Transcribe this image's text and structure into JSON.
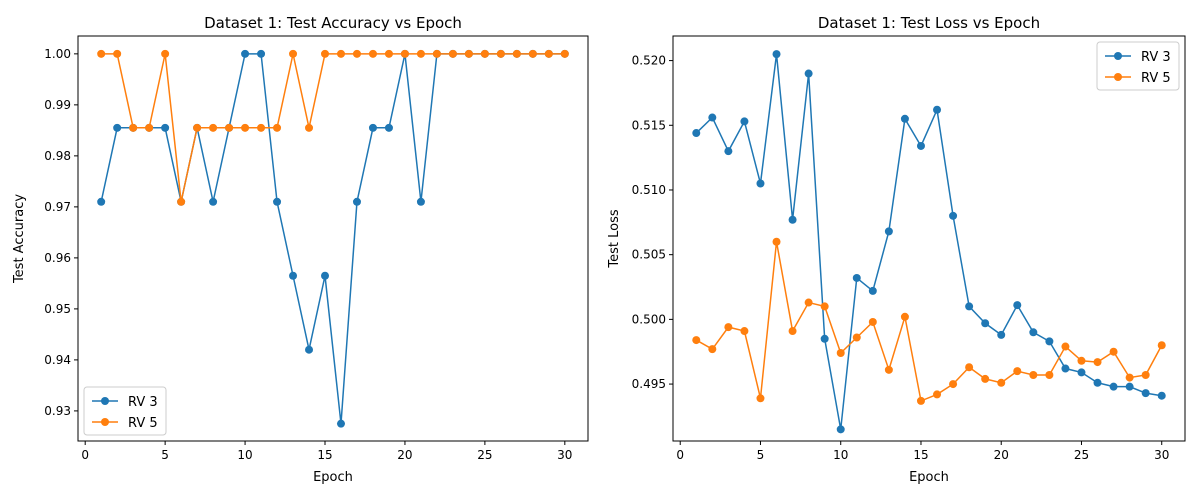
{
  "chart_data": [
    {
      "type": "line",
      "title": "Dataset 1: Test Accuracy vs Epoch",
      "xlabel": "Epoch",
      "ylabel": "Test Accuracy",
      "xlim": [
        -0.45,
        31.45
      ],
      "ylim": [
        0.9241,
        1.0035
      ],
      "xticks": [
        0,
        5,
        10,
        15,
        20,
        25,
        30
      ],
      "yticks": [
        0.93,
        0.94,
        0.95,
        0.96,
        0.97,
        0.98,
        0.99,
        1.0
      ],
      "ytick_labels": [
        "0.93",
        "0.94",
        "0.95",
        "0.96",
        "0.97",
        "0.98",
        "0.99",
        "1.00"
      ],
      "legend_position": "lower-left",
      "x": [
        1,
        2,
        3,
        4,
        5,
        6,
        7,
        8,
        9,
        10,
        11,
        12,
        13,
        14,
        15,
        16,
        17,
        18,
        19,
        20,
        21,
        22,
        23,
        24,
        25,
        26,
        27,
        28,
        29,
        30
      ],
      "series": [
        {
          "name": "RV 3",
          "color": "#1f77b4",
          "values": [
            0.971,
            0.9855,
            0.9855,
            0.9855,
            0.9855,
            0.971,
            0.9855,
            0.971,
            0.9855,
            1.0,
            1.0,
            0.971,
            0.9565,
            0.942,
            0.9565,
            0.9275,
            0.971,
            0.9855,
            0.9855,
            1.0,
            0.971,
            1.0,
            1.0,
            1.0,
            1.0,
            1.0,
            1.0,
            1.0,
            1.0,
            1.0
          ]
        },
        {
          "name": "RV 5",
          "color": "#ff7f0e",
          "values": [
            1.0,
            1.0,
            0.9855,
            0.9855,
            1.0,
            0.971,
            0.9855,
            0.9855,
            0.9855,
            0.9855,
            0.9855,
            0.9855,
            1.0,
            0.9855,
            1.0,
            1.0,
            1.0,
            1.0,
            1.0,
            1.0,
            1.0,
            1.0,
            1.0,
            1.0,
            1.0,
            1.0,
            1.0,
            1.0,
            1.0,
            1.0
          ]
        }
      ]
    },
    {
      "type": "line",
      "title": "Dataset 1: Test Loss vs Epoch",
      "xlabel": "Epoch",
      "ylabel": "Test Loss",
      "xlim": [
        -0.45,
        31.45
      ],
      "ylim": [
        0.4906,
        0.5219
      ],
      "xticks": [
        0,
        5,
        10,
        15,
        20,
        25,
        30
      ],
      "yticks": [
        0.495,
        0.5,
        0.505,
        0.51,
        0.515,
        0.52
      ],
      "ytick_labels": [
        "0.495",
        "0.500",
        "0.505",
        "0.510",
        "0.515",
        "0.520"
      ],
      "legend_position": "upper-right",
      "x": [
        1,
        2,
        3,
        4,
        5,
        6,
        7,
        8,
        9,
        10,
        11,
        12,
        13,
        14,
        15,
        16,
        17,
        18,
        19,
        20,
        21,
        22,
        23,
        24,
        25,
        26,
        27,
        28,
        29,
        30
      ],
      "series": [
        {
          "name": "RV 3",
          "color": "#1f77b4",
          "values": [
            0.5144,
            0.5156,
            0.513,
            0.5153,
            0.5105,
            0.5205,
            0.5077,
            0.519,
            0.4985,
            0.4915,
            0.5032,
            0.5022,
            0.5068,
            0.5155,
            0.5134,
            0.5162,
            0.508,
            0.501,
            0.4997,
            0.4988,
            0.5011,
            0.499,
            0.4983,
            0.4962,
            0.4959,
            0.4951,
            0.4948,
            0.4948,
            0.4943,
            0.4941
          ]
        },
        {
          "name": "RV 5",
          "color": "#ff7f0e",
          "values": [
            0.4984,
            0.4977,
            0.4994,
            0.4991,
            0.4939,
            0.506,
            0.4991,
            0.5013,
            0.501,
            0.4974,
            0.4986,
            0.4998,
            0.4961,
            0.5002,
            0.4937,
            0.4942,
            0.495,
            0.4963,
            0.4954,
            0.4951,
            0.496,
            0.4957,
            0.4957,
            0.4979,
            0.4968,
            0.4967,
            0.4975,
            0.4955,
            0.4957,
            0.498
          ]
        }
      ]
    }
  ]
}
